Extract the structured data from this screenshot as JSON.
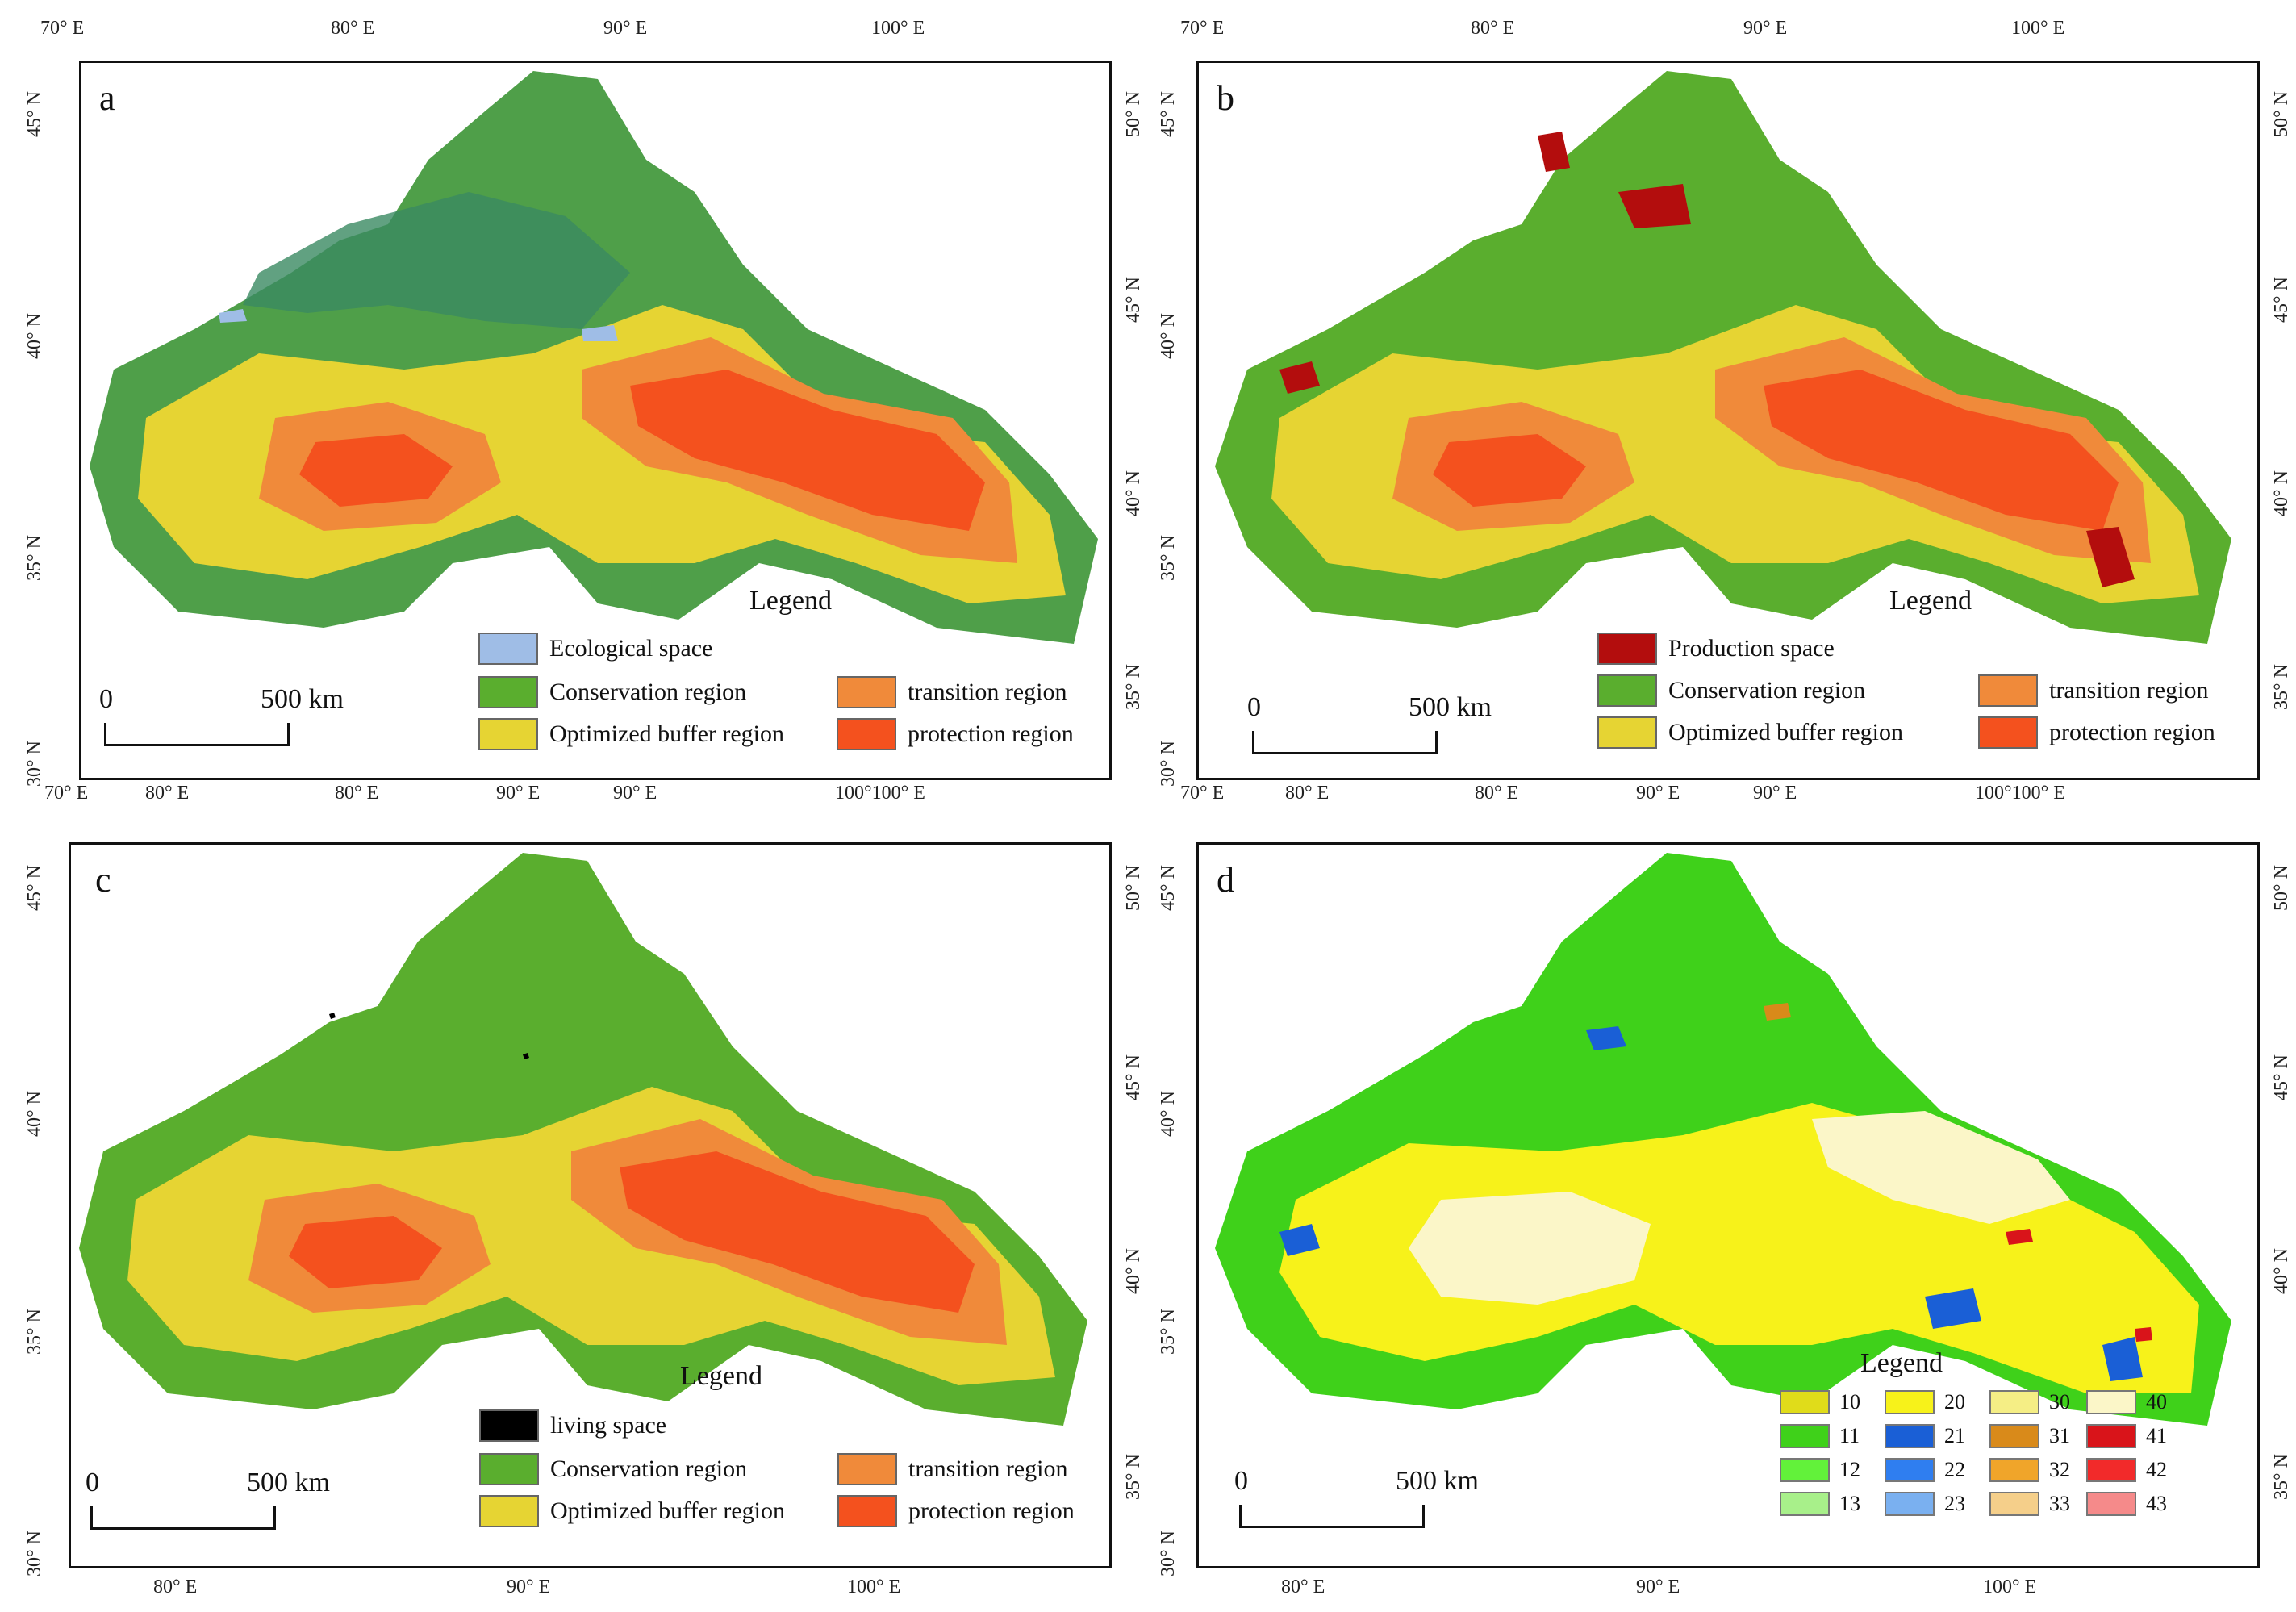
{
  "colors": {
    "ecological_space": "#9fbde6",
    "conservation": "#5aae2e",
    "conservation_dark": "#3a8a5a",
    "optimized_buffer": "#e6d433",
    "transition": "#f08a3a",
    "protection": "#f4511e",
    "production_space": "#b30d0d",
    "living_space": "#000000"
  },
  "panels": [
    {
      "letter": "a",
      "top_ticks": [
        "70° E",
        "80° E",
        "90° E",
        "100° E"
      ],
      "bottom_ticks": [
        "70° E",
        "80° E",
        "80° E",
        "90° E",
        "90° E",
        "100°100° E"
      ],
      "left_ticks": [
        "45° N",
        "40° N",
        "35° N",
        "30° N"
      ],
      "right_ticks": [
        "50° N",
        "45° N",
        "40° N",
        "35° N"
      ],
      "legend_title": "Legend",
      "legend": [
        {
          "label": "Ecological space",
          "color": "#9fbde6"
        },
        {
          "label": "Conservation region",
          "color": "#5aae2e"
        },
        {
          "label": "transition region",
          "color": "#f08a3a"
        },
        {
          "label": "Optimized buffer region",
          "color": "#e6d433"
        },
        {
          "label": "protection region",
          "color": "#f4511e"
        }
      ],
      "scale": {
        "zero": "0",
        "label": "500 km"
      }
    },
    {
      "letter": "b",
      "top_ticks": [
        "70° E",
        "80° E",
        "90° E",
        "100° E"
      ],
      "bottom_ticks": [
        "70° E",
        "80° E",
        "80° E",
        "90° E",
        "90° E",
        "100°100° E"
      ],
      "left_ticks": [
        "45° N",
        "40° N",
        "35° N",
        "30° N"
      ],
      "right_ticks": [
        "50° N",
        "45° N",
        "40° N",
        "35° N"
      ],
      "legend_title": "Legend",
      "legend": [
        {
          "label": "Production space",
          "color": "#b30d0d"
        },
        {
          "label": "Conservation region",
          "color": "#5aae2e"
        },
        {
          "label": "transition region",
          "color": "#f08a3a"
        },
        {
          "label": "Optimized buffer region",
          "color": "#e6d433"
        },
        {
          "label": "protection region",
          "color": "#f4511e"
        }
      ],
      "scale": {
        "zero": "0",
        "label": "500 km"
      }
    },
    {
      "letter": "c",
      "bottom_ticks": [
        "80° E",
        "90° E",
        "100° E"
      ],
      "left_ticks": [
        "45° N",
        "40° N",
        "35° N",
        "30° N"
      ],
      "right_ticks": [
        "50° N",
        "45° N",
        "40° N",
        "35° N"
      ],
      "legend_title": "Legend",
      "legend": [
        {
          "label": "living space",
          "color": "#000000"
        },
        {
          "label": "Conservation region",
          "color": "#5aae2e"
        },
        {
          "label": "transition region",
          "color": "#f08a3a"
        },
        {
          "label": "Optimized buffer region",
          "color": "#e6d433"
        },
        {
          "label": "protection region",
          "color": "#f4511e"
        }
      ],
      "scale": {
        "zero": "0",
        "label": "500 km"
      }
    },
    {
      "letter": "d",
      "bottom_ticks": [
        "80° E",
        "90° E",
        "100° E"
      ],
      "left_ticks": [
        "45° N",
        "40° N",
        "35° N",
        "30° N"
      ],
      "right_ticks": [
        "50° N",
        "45° N",
        "40° N",
        "35° N"
      ],
      "legend_title": "Legend",
      "legend": [
        {
          "label": "10",
          "color": "#e0dc1a"
        },
        {
          "label": "20",
          "color": "#f7f21a"
        },
        {
          "label": "30",
          "color": "#f5ee85"
        },
        {
          "label": "40",
          "color": "#fbf6c8"
        },
        {
          "label": "11",
          "color": "#3fd11a"
        },
        {
          "label": "21",
          "color": "#1a5fd6"
        },
        {
          "label": "31",
          "color": "#d98a1a"
        },
        {
          "label": "41",
          "color": "#d9141a"
        },
        {
          "label": "12",
          "color": "#62f23a"
        },
        {
          "label": "22",
          "color": "#2f7ef0"
        },
        {
          "label": "32",
          "color": "#f0a52a"
        },
        {
          "label": "42",
          "color": "#f22a2a"
        },
        {
          "label": "13",
          "color": "#a8f08a"
        },
        {
          "label": "23",
          "color": "#7ab0f0"
        },
        {
          "label": "33",
          "color": "#f5cf8a"
        },
        {
          "label": "43",
          "color": "#f58a8a"
        }
      ],
      "scale": {
        "zero": "0",
        "label": "500 km"
      }
    }
  ]
}
